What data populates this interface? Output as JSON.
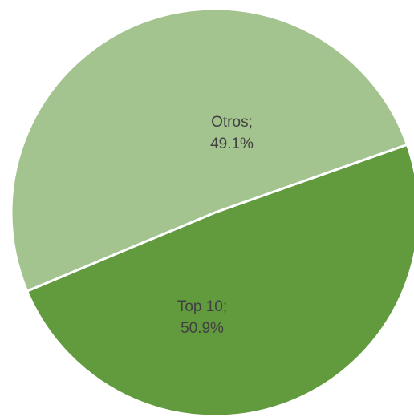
{
  "chart_data": {
    "type": "pie",
    "title": "",
    "slices": [
      {
        "label": "Otros",
        "value": 49.1,
        "data_label_line1": "Otros;",
        "data_label_line2": "49.1%",
        "color": "#629a3e"
      },
      {
        "label": "Top 10",
        "value": 50.9,
        "data_label_line1": "Top 10;",
        "data_label_line2": "50.9%",
        "color": "#a3c48f"
      }
    ],
    "legend": "none",
    "slice_border_color": "#ffffff",
    "label_color": "#404040"
  }
}
